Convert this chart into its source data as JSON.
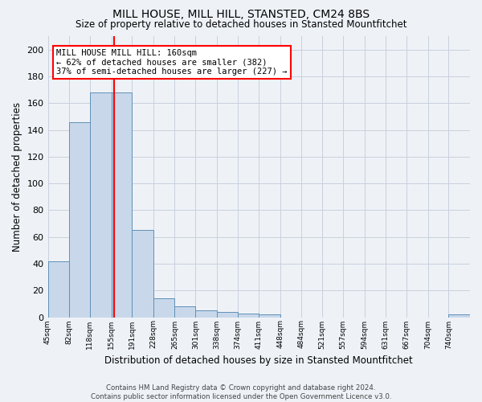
{
  "title": "MILL HOUSE, MILL HILL, STANSTED, CM24 8BS",
  "subtitle": "Size of property relative to detached houses in Stansted Mountfitchet",
  "xlabel": "Distribution of detached houses by size in Stansted Mountfitchet",
  "ylabel": "Number of detached properties",
  "footnote1": "Contains HM Land Registry data © Crown copyright and database right 2024.",
  "footnote2": "Contains public sector information licensed under the Open Government Licence v3.0.",
  "bins": [
    45,
    82,
    118,
    155,
    191,
    228,
    265,
    301,
    338,
    374,
    411,
    448,
    484,
    521,
    557,
    594,
    631,
    667,
    704,
    740,
    777
  ],
  "counts": [
    42,
    146,
    168,
    168,
    65,
    14,
    8,
    5,
    4,
    3,
    2,
    0,
    0,
    0,
    0,
    0,
    0,
    0,
    0,
    2
  ],
  "bar_color": "#c8d8ea",
  "bar_edge_color": "#6090b8",
  "grid_color": "#c8d0dc",
  "vline_x": 160,
  "vline_color": "red",
  "annotation_text": "MILL HOUSE MILL HILL: 160sqm\n← 62% of detached houses are smaller (382)\n37% of semi-detached houses are larger (227) →",
  "annotation_box_color": "white",
  "annotation_box_edge": "red",
  "ylim": [
    0,
    210
  ],
  "yticks": [
    0,
    20,
    40,
    60,
    80,
    100,
    120,
    140,
    160,
    180,
    200
  ],
  "bg_color": "#eef2f7"
}
